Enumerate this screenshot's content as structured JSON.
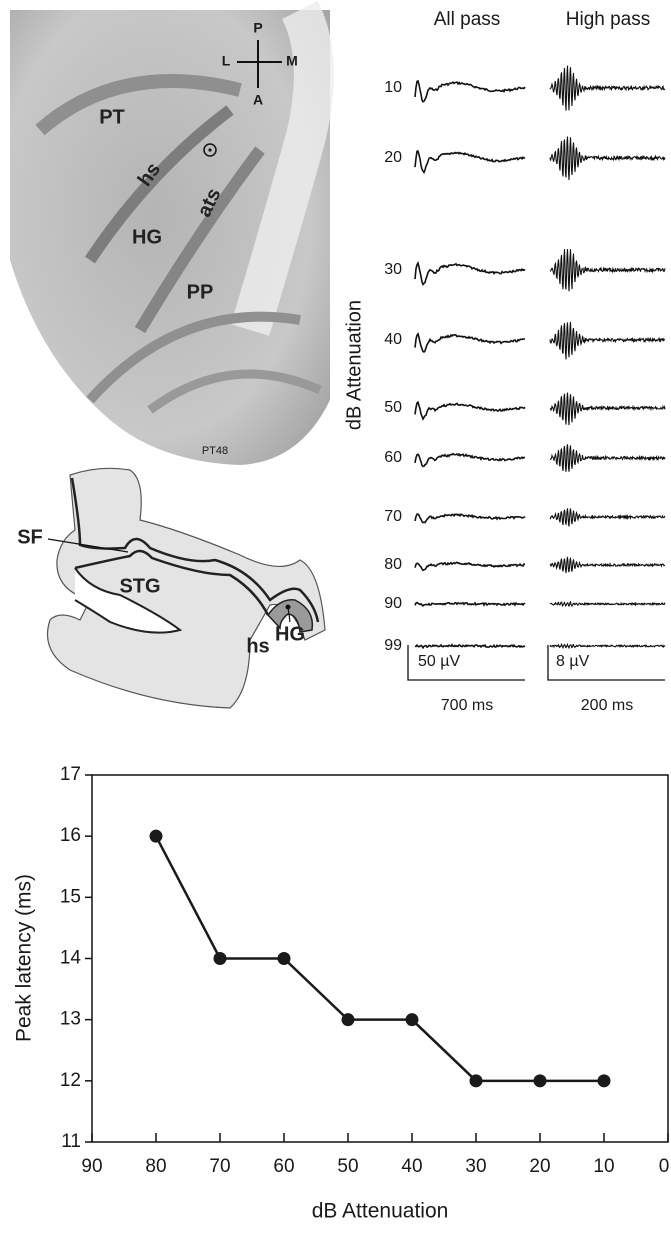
{
  "mri": {
    "labels": [
      "PT",
      "hs",
      "ats",
      "HG",
      "PP"
    ],
    "orientation": {
      "P": "P",
      "L": "L",
      "M": "M",
      "A": "A"
    },
    "slice": "PT48"
  },
  "diagram": {
    "labels": [
      "SF",
      "STG",
      "hs",
      "HG"
    ]
  },
  "waveforms": {
    "columns": [
      "All pass",
      "High pass"
    ],
    "y_label": "dB Attenuation",
    "rows": [
      10,
      20,
      30,
      40,
      50,
      60,
      70,
      80,
      90,
      99
    ],
    "scale_bars": [
      {
        "amplitude": "50 µV",
        "time": "700 ms"
      },
      {
        "amplitude": "8 µV",
        "time": "200 ms"
      }
    ]
  },
  "chart_data": {
    "type": "line",
    "x_label": "dB Attenuation",
    "y_label": "Peak latency (ms)",
    "x": [
      80,
      70,
      60,
      50,
      40,
      30,
      20,
      10
    ],
    "values": [
      16,
      14,
      14,
      13,
      13,
      12,
      12,
      12
    ],
    "color": "#1a1a1a",
    "xlim": [
      90,
      0
    ],
    "ylim": [
      11,
      17
    ],
    "xticks": [
      90,
      80,
      70,
      60,
      50,
      40,
      30,
      20,
      10,
      0
    ],
    "yticks": [
      11,
      12,
      13,
      14,
      15,
      16,
      17
    ]
  }
}
